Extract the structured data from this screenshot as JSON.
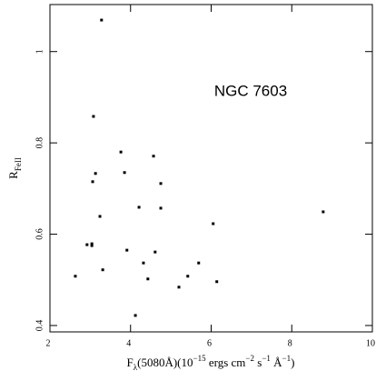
{
  "chart_data": {
    "type": "scatter",
    "annotation": "NGC 7603",
    "x_label": [
      {
        "text": "F"
      },
      {
        "text": "λ",
        "sub": true
      },
      {
        "text": "(5080Å)(10"
      },
      {
        "text": "−15",
        "sup": true
      },
      {
        "text": " ergs cm"
      },
      {
        "text": "−2",
        "sup": true
      },
      {
        "text": " s"
      },
      {
        "text": "−1",
        "sup": true
      },
      {
        "text": " Å"
      },
      {
        "text": "−1",
        "sup": true
      },
      {
        "text": ")"
      }
    ],
    "y_label": [
      {
        "text": "R"
      },
      {
        "text": "FeII",
        "sub": true
      }
    ],
    "x": [
      3.28,
      3.08,
      3.76,
      4.57,
      3.85,
      3.13,
      3.06,
      4.75,
      4.21,
      4.75,
      3.24,
      8.78,
      6.05,
      2.92,
      3.04,
      3.04,
      3.91,
      4.61,
      4.32,
      5.69,
      3.31,
      5.42,
      2.63,
      4.43,
      6.14,
      5.2,
      4.12
    ],
    "values": [
      1.069,
      0.858,
      0.78,
      0.771,
      0.735,
      0.733,
      0.715,
      0.711,
      0.659,
      0.657,
      0.639,
      0.649,
      0.623,
      0.577,
      0.579,
      0.575,
      0.565,
      0.561,
      0.537,
      0.537,
      0.522,
      0.508,
      0.508,
      0.502,
      0.496,
      0.484,
      0.422
    ],
    "color": "#000000",
    "xlim": [
      2,
      10
    ],
    "xticks": [
      2,
      4,
      6,
      8,
      10
    ],
    "ylim": [
      0.386,
      1.103
    ],
    "yticks": [
      0.4,
      0.6,
      0.8,
      1
    ]
  }
}
